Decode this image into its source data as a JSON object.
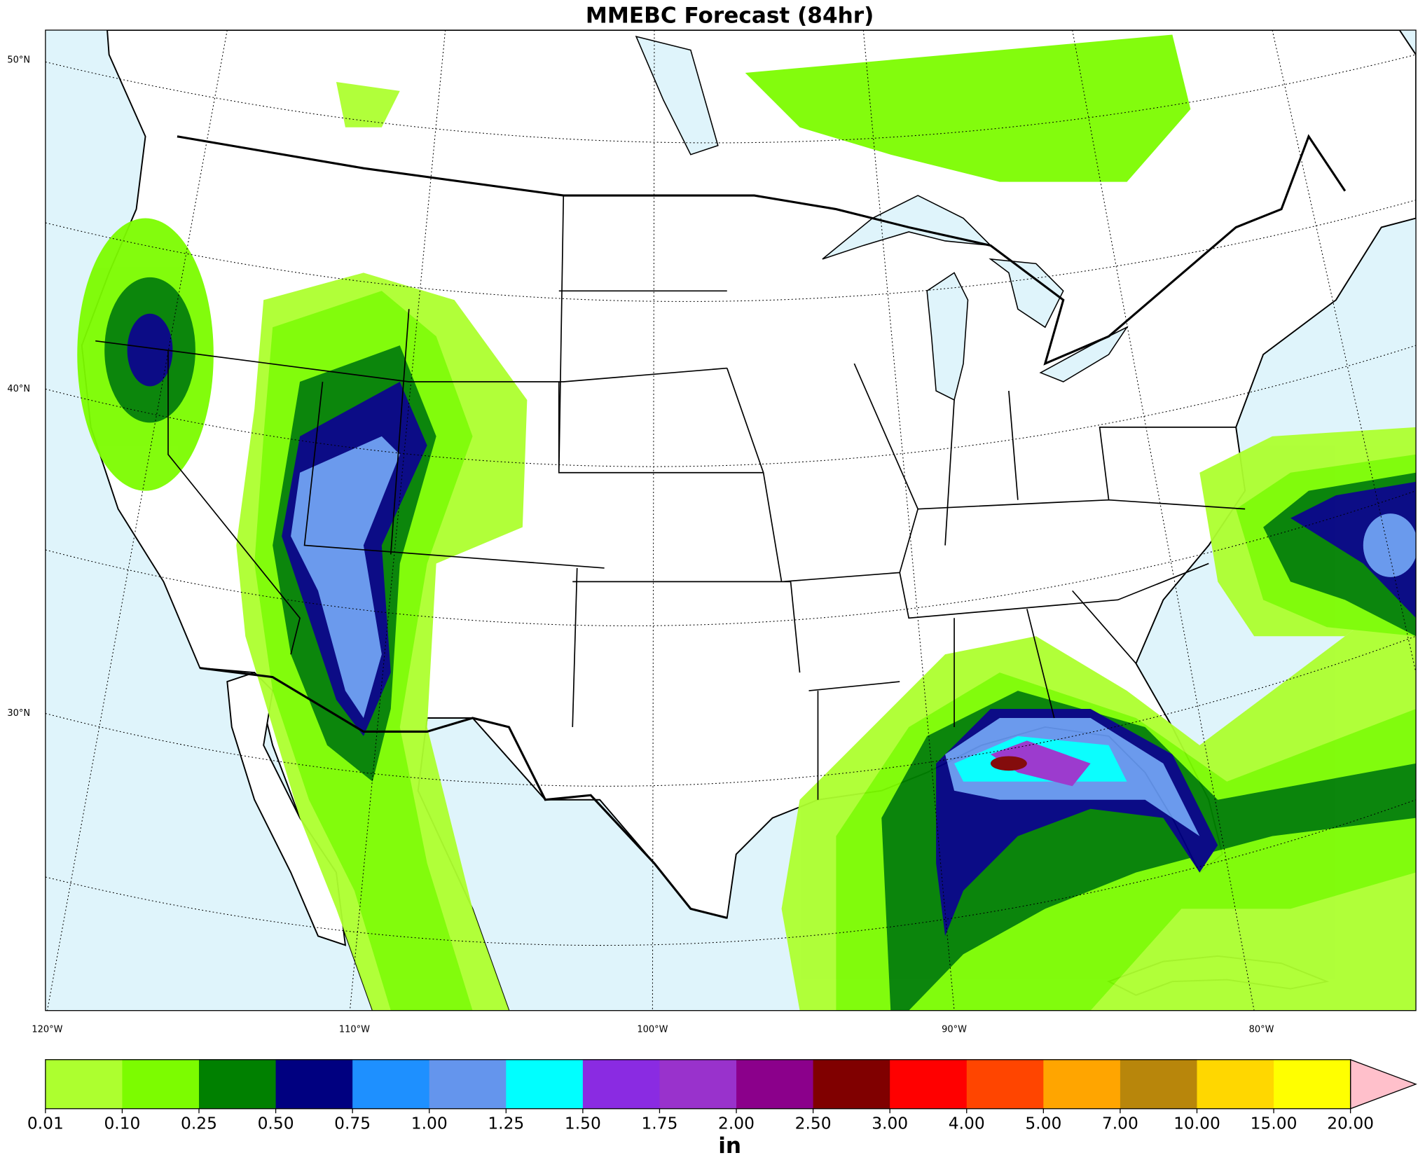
{
  "title": "MMEBC Forecast (84hr)",
  "map": {
    "lat_labels": [
      "50°N",
      "40°N",
      "30°N"
    ],
    "lon_labels": [
      "120°W",
      "110°W",
      "100°W",
      "90°W",
      "80°W"
    ]
  },
  "colorbar": {
    "ticks": [
      0.01,
      {
        "value": 0.1,
        "label": "0.10"
      },
      0.25,
      {
        "value": 0.5,
        "label": "0.50"
      },
      0.75,
      {
        "value": 1,
        "label": "1.00"
      },
      1.25,
      {
        "value": 1.5,
        "label": "1.50"
      },
      1.75,
      {
        "value": 2,
        "label": "2.00"
      },
      {
        "value": 2.5,
        "label": "2.50"
      },
      {
        "value": 3,
        "label": "3.00"
      },
      {
        "value": 4,
        "label": "4.00"
      },
      {
        "value": 5,
        "label": "5.00"
      },
      {
        "value": 7,
        "label": "7.00"
      },
      {
        "value": 10,
        "label": "10.00"
      },
      {
        "value": 15,
        "label": "15.00"
      },
      {
        "value": 20,
        "label": "20.00"
      }
    ],
    "colors": [
      "#adff2f",
      "#7cfc00",
      "#008000",
      "#000080",
      "#1e90ff",
      "#6495ed",
      "#00ffff",
      "#8a2be2",
      "#9932cc",
      "#8b008b",
      "#800000",
      "#ff0000",
      "#ff4500",
      "#ffa500",
      "#b8860b",
      "#ffd700",
      "#ffff00"
    ],
    "extend_color": "#ffc0cb",
    "label": "in"
  }
}
